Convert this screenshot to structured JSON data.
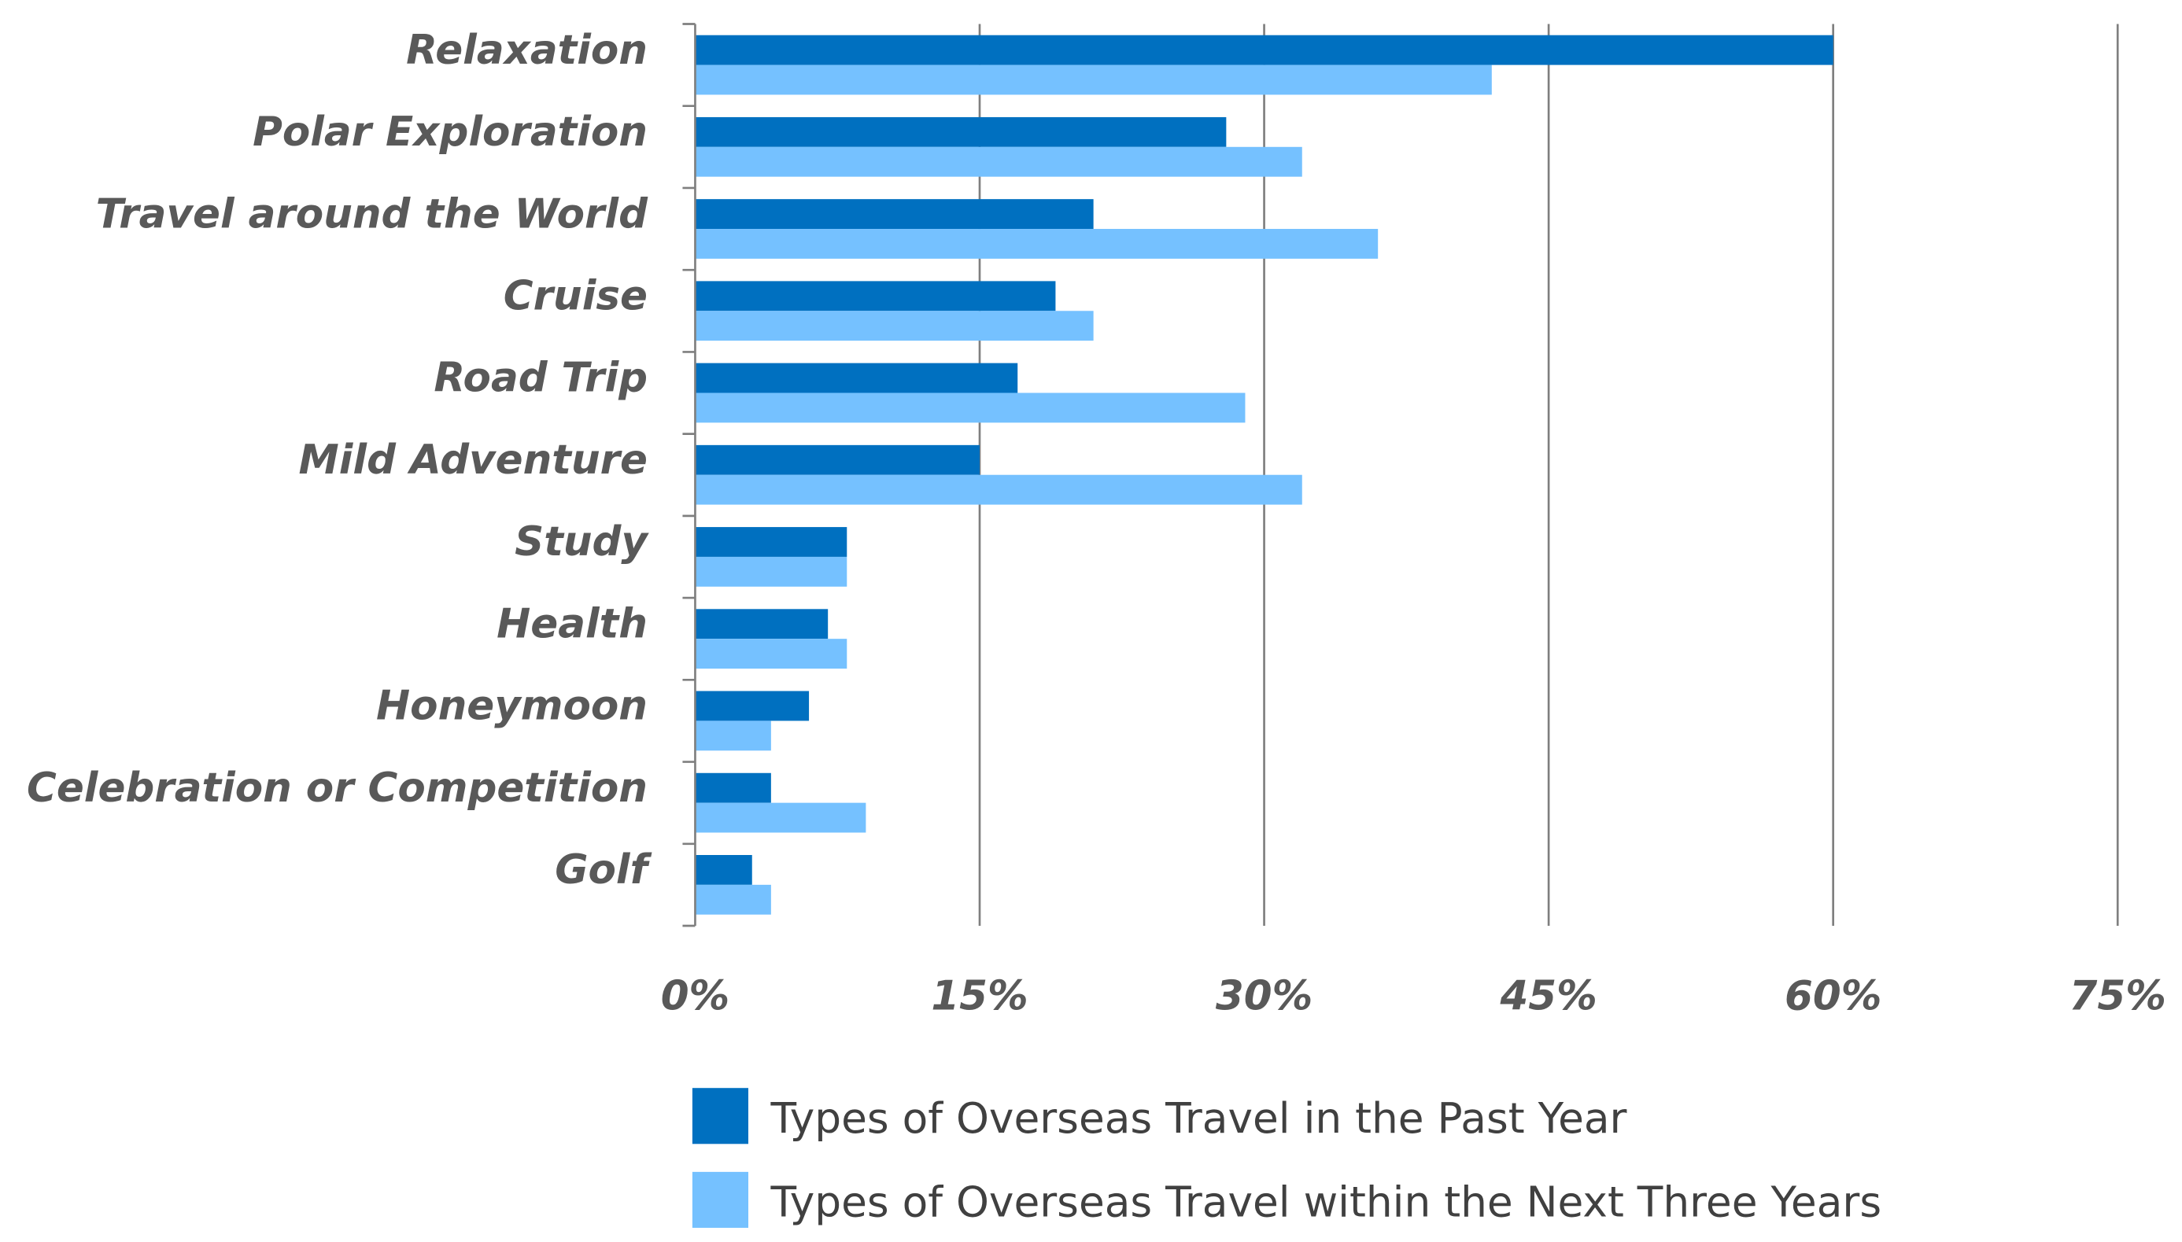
{
  "chart_data": {
    "type": "bar",
    "orientation": "horizontal",
    "categories": [
      "Relaxation",
      "Polar Exploration",
      "Travel around the World",
      "Cruise",
      "Road Trip",
      "Mild Adventure",
      "Study",
      "Health",
      "Honeymoon",
      "Celebration or Competition",
      "Golf"
    ],
    "series": [
      {
        "name": "Types of Overseas Travel in the Past Year",
        "color": "#0070C0",
        "values": [
          60,
          28,
          21,
          19,
          17,
          15,
          8,
          7,
          6,
          4,
          3
        ]
      },
      {
        "name": "Types of Overseas Travel within the Next Three Years",
        "color": "#75C1FF",
        "values": [
          42,
          32,
          36,
          21,
          29,
          32,
          8,
          8,
          4,
          9,
          4
        ]
      }
    ],
    "xlim": [
      0,
      75
    ],
    "xticks": [
      "0%",
      "15%",
      "30%",
      "45%",
      "60%",
      "75%"
    ],
    "xtick_values": [
      0,
      15,
      30,
      45,
      60,
      75
    ],
    "grid": true,
    "legend_position": "bottom",
    "title": "",
    "xlabel": "",
    "ylabel": ""
  }
}
